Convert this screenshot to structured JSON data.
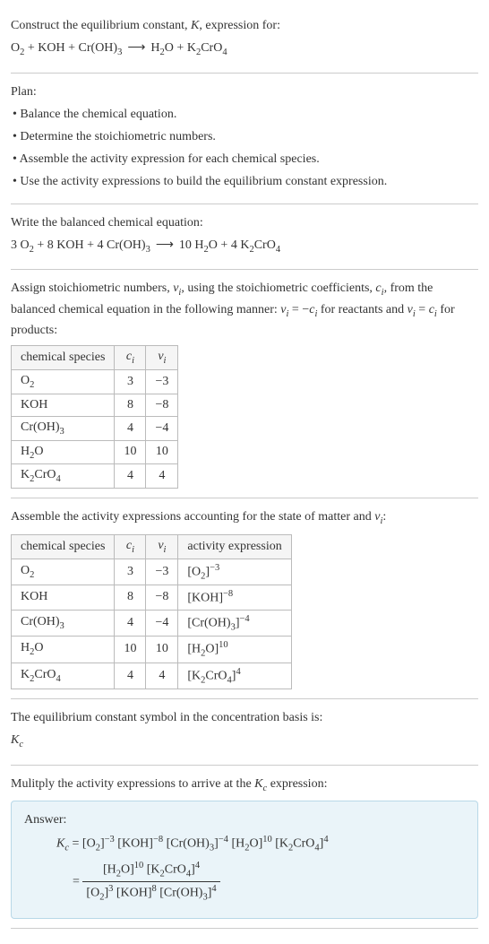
{
  "intro": {
    "line1_pre": "Construct the equilibrium constant, ",
    "line1_K": "K",
    "line1_post": ", expression for:",
    "eq_O2_O": "O",
    "eq_O2_2": "2",
    "plus": " + ",
    "eq_KOH": "KOH",
    "eq_CrOH3_Cr": "Cr(OH)",
    "eq_CrOH3_3": "3",
    "arrow": "⟶",
    "eq_H2O_H": "H",
    "eq_H2O_2": "2",
    "eq_H2O_O": "O",
    "eq_K2CrO4_K": "K",
    "eq_K2CrO4_2": "2",
    "eq_K2CrO4_CrO": "CrO",
    "eq_K2CrO4_4": "4"
  },
  "plan": {
    "title": "Plan:",
    "b1": "• Balance the chemical equation.",
    "b2": "• Determine the stoichiometric numbers.",
    "b3": "• Assemble the activity expression for each chemical species.",
    "b4": "• Use the activity expressions to build the equilibrium constant expression."
  },
  "balanced": {
    "title": "Write the balanced chemical equation:",
    "c_O2": "3 ",
    "c_KOH": "8 ",
    "c_CrOH3": "4 ",
    "c_H2O": "10 ",
    "c_K2CrO4": "4 "
  },
  "assign": {
    "p1": "Assign stoichiometric numbers, ",
    "nu": "ν",
    "i": "i",
    "p2": ", using the stoichiometric coefficients, ",
    "c": "c",
    "p3": ", from the balanced chemical equation in the following manner: ",
    "eq1_lhs_nu": "ν",
    "eq1_eq": " = −",
    "eq1_rhs_c": "c",
    "p4": " for reactants and ",
    "eq2_lhs_nu": "ν",
    "eq2_eq": " = ",
    "eq2_rhs_c": "c",
    "p5": " for products:"
  },
  "table1": {
    "h1": "chemical species",
    "h2_c": "c",
    "h2_i": "i",
    "h3_nu": "ν",
    "h3_i": "i",
    "rows": [
      {
        "sp_a": "O",
        "sp_b": "2",
        "c": "3",
        "nu": "−3"
      },
      {
        "sp_a": "KOH",
        "sp_b": "",
        "c": "8",
        "nu": "−8"
      },
      {
        "sp_a": "Cr(OH)",
        "sp_b": "3",
        "c": "4",
        "nu": "−4"
      },
      {
        "sp_a": "H",
        "sp_b": "2",
        "sp_c": "O",
        "c": "10",
        "nu": "10"
      },
      {
        "sp_a": "K",
        "sp_b": "2",
        "sp_c": "CrO",
        "sp_d": "4",
        "c": "4",
        "nu": "4"
      }
    ]
  },
  "assemble": {
    "p1": "Assemble the activity expressions accounting for the state of matter and ",
    "nu": "ν",
    "i": "i",
    "colon": ":"
  },
  "table2": {
    "h1": "chemical species",
    "h2_c": "c",
    "h2_i": "i",
    "h3_nu": "ν",
    "h3_i": "i",
    "h4": "activity expression",
    "rows": [
      {
        "sp_a": "O",
        "sp_b": "2",
        "c": "3",
        "nu": "−3",
        "ae_a": "[O",
        "ae_b": "2",
        "ae_c": "]",
        "ae_exp": "−3"
      },
      {
        "sp_a": "KOH",
        "sp_b": "",
        "c": "8",
        "nu": "−8",
        "ae_a": "[KOH]",
        "ae_b": "",
        "ae_c": "",
        "ae_exp": "−8"
      },
      {
        "sp_a": "Cr(OH)",
        "sp_b": "3",
        "c": "4",
        "nu": "−4",
        "ae_a": "[Cr(OH)",
        "ae_b": "3",
        "ae_c": "]",
        "ae_exp": "−4"
      },
      {
        "sp_a": "H",
        "sp_b": "2",
        "sp_c": "O",
        "c": "10",
        "nu": "10",
        "ae_a": "[H",
        "ae_b": "2",
        "ae_c": "O]",
        "ae_exp": "10"
      },
      {
        "sp_a": "K",
        "sp_b": "2",
        "sp_c": "CrO",
        "sp_d": "4",
        "c": "4",
        "nu": "4",
        "ae_a": "[K",
        "ae_b": "2",
        "ae_c": "CrO",
        "ae_d": "4",
        "ae_e": "]",
        "ae_exp": "4"
      }
    ]
  },
  "symbol": {
    "line": "The equilibrium constant symbol in the concentration basis is:",
    "K": "K",
    "c": "c"
  },
  "multiply": {
    "p1": "Mulitply the activity expressions to arrive at the ",
    "K": "K",
    "c": "c",
    "p2": " expression:"
  },
  "answer": {
    "label": "Answer:",
    "Kc_K": "K",
    "Kc_c": "c",
    "eq": " = ",
    "t1_a": "[O",
    "t1_b": "2",
    "t1_c": "]",
    "t1_exp": "−3",
    "sp": " ",
    "t2_a": "[KOH]",
    "t2_exp": "−8",
    "t3_a": "[Cr(OH)",
    "t3_b": "3",
    "t3_c": "]",
    "t3_exp": "−4",
    "t4_a": "[H",
    "t4_b": "2",
    "t4_c": "O]",
    "t4_exp": "10",
    "t5_a": "[K",
    "t5_b": "2",
    "t5_c": "CrO",
    "t5_d": "4",
    "t5_e": "]",
    "t5_exp": "4",
    "eq2": "= ",
    "num_t1_a": "[H",
    "num_t1_b": "2",
    "num_t1_c": "O]",
    "num_t1_exp": "10",
    "num_t2_a": "[K",
    "num_t2_b": "2",
    "num_t2_c": "CrO",
    "num_t2_d": "4",
    "num_t2_e": "]",
    "num_t2_exp": "4",
    "den_t1_a": "[O",
    "den_t1_b": "2",
    "den_t1_c": "]",
    "den_t1_exp": "3",
    "den_t2_a": "[KOH]",
    "den_t2_exp": "8",
    "den_t3_a": "[Cr(OH)",
    "den_t3_b": "3",
    "den_t3_c": "]",
    "den_t3_exp": "4"
  }
}
